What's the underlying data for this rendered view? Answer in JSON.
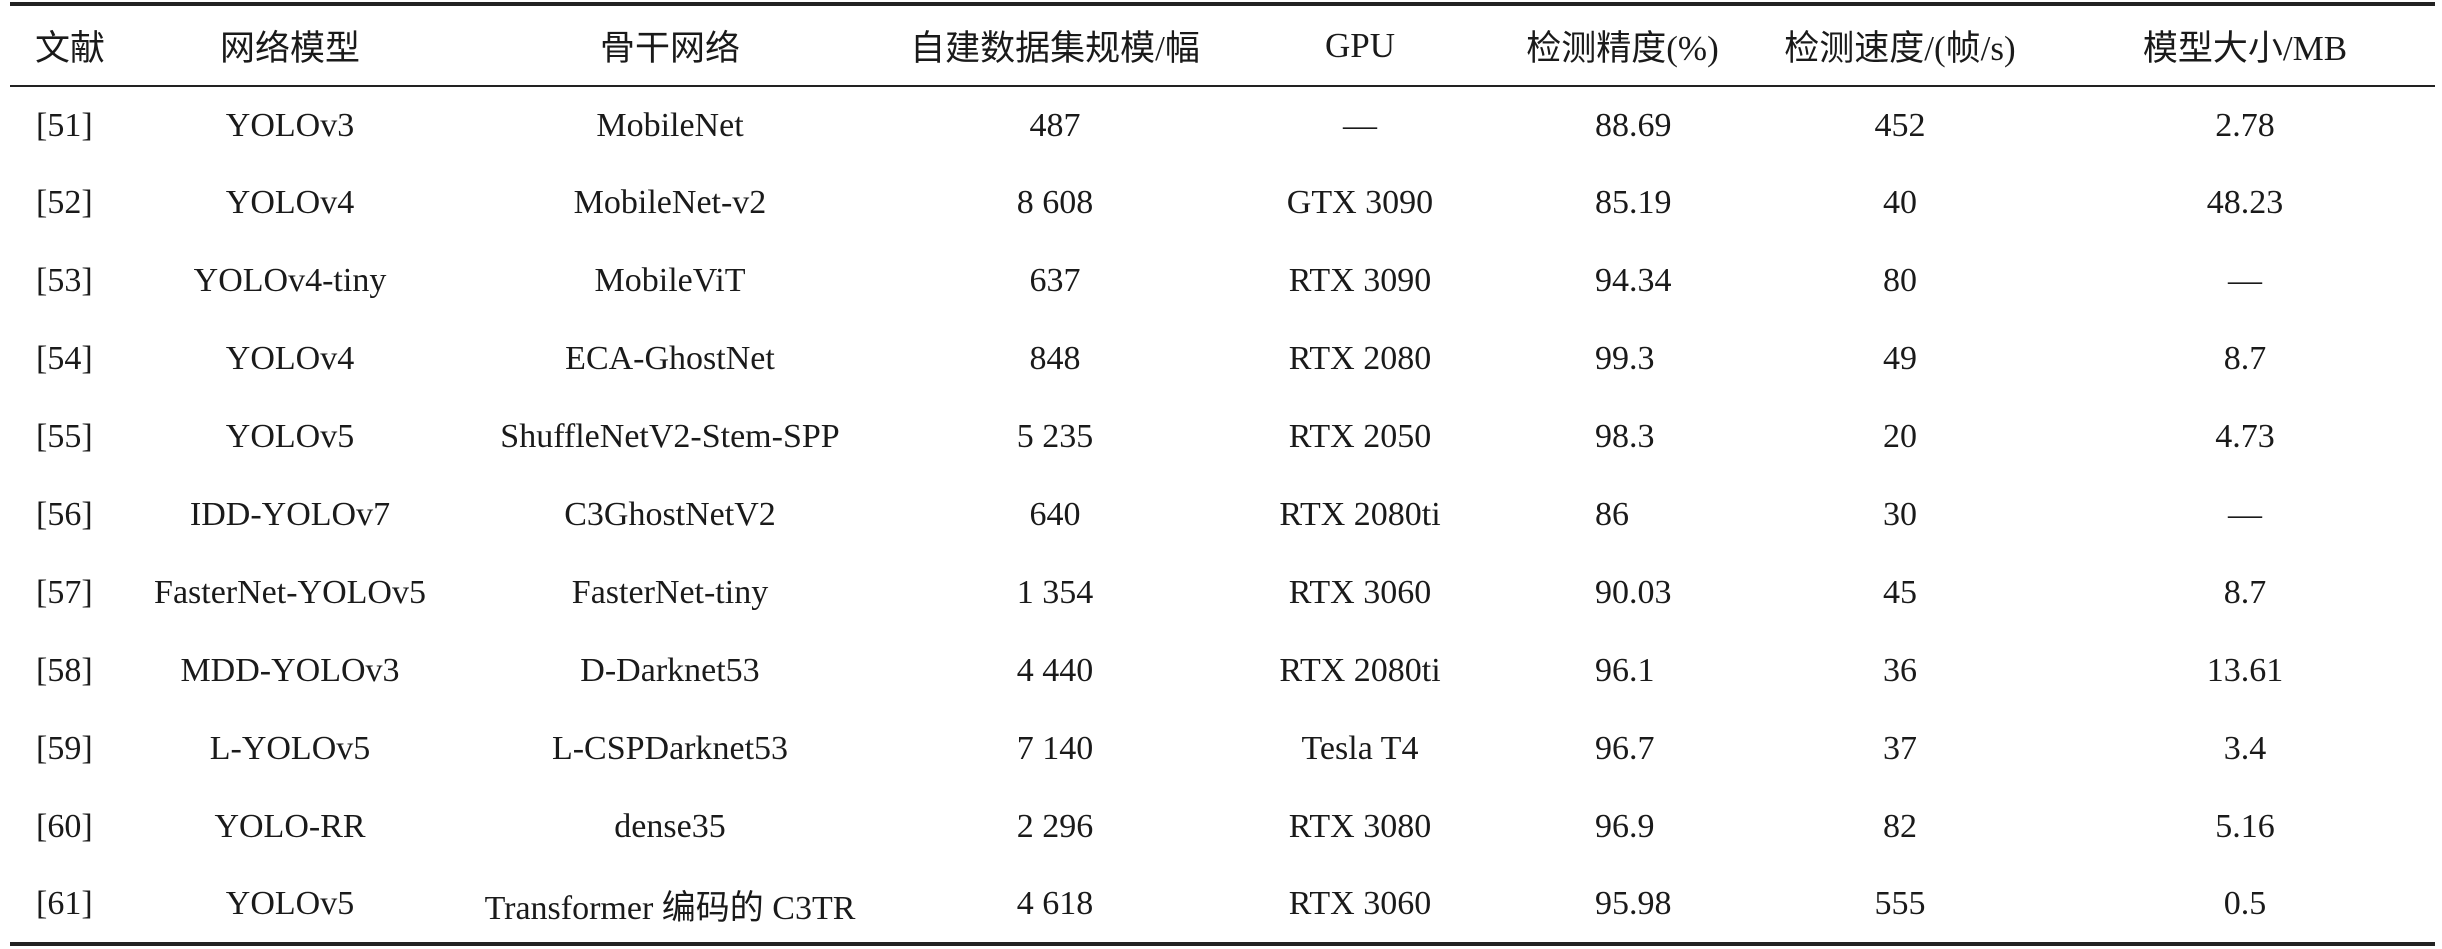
{
  "table": {
    "headers": [
      "文献",
      "网络模型",
      "骨干网络",
      "自建数据集规模/幅",
      "GPU",
      "检测精度(%)",
      "检测速度/(帧/s)",
      "模型大小/MB"
    ],
    "rows": [
      [
        "[51]",
        "YOLOv3",
        "MobileNet",
        "487",
        "—",
        "88.69",
        "452",
        "2.78"
      ],
      [
        "[52]",
        "YOLOv4",
        "MobileNet-v2",
        "8 608",
        "GTX 3090",
        "85.19",
        "40",
        "48.23"
      ],
      [
        "[53]",
        "YOLOv4-tiny",
        "MobileViT",
        "637",
        "RTX 3090",
        "94.34",
        "80",
        "—"
      ],
      [
        "[54]",
        "YOLOv4",
        "ECA-GhostNet",
        "848",
        "RTX 2080",
        "99.3",
        "49",
        "8.7"
      ],
      [
        "[55]",
        "YOLOv5",
        "ShuffleNetV2-Stem-SPP",
        "5 235",
        "RTX 2050",
        "98.3",
        "20",
        "4.73"
      ],
      [
        "[56]",
        "IDD-YOLOv7",
        "C3GhostNetV2",
        "640",
        "RTX 2080ti",
        "86",
        "30",
        "—"
      ],
      [
        "[57]",
        "FasterNet-YOLOv5",
        "FasterNet-tiny",
        "1 354",
        "RTX 3060",
        "90.03",
        "45",
        "8.7"
      ],
      [
        "[58]",
        "MDD-YOLOv3",
        "D-Darknet53",
        "4 440",
        "RTX 2080ti",
        "96.1",
        "36",
        "13.61"
      ],
      [
        "[59]",
        "L-YOLOv5",
        "L-CSPDarknet53",
        "7 140",
        "Tesla T4",
        "96.7",
        "37",
        "3.4"
      ],
      [
        "[60]",
        "YOLO-RR",
        "dense35",
        "2 296",
        "RTX 3080",
        "96.9",
        "82",
        "5.16"
      ],
      [
        "[61]",
        "YOLOv5",
        "Transformer 编码的 C3TR",
        "4 618",
        "RTX 3060",
        "95.98",
        "555",
        "0.5"
      ]
    ]
  }
}
